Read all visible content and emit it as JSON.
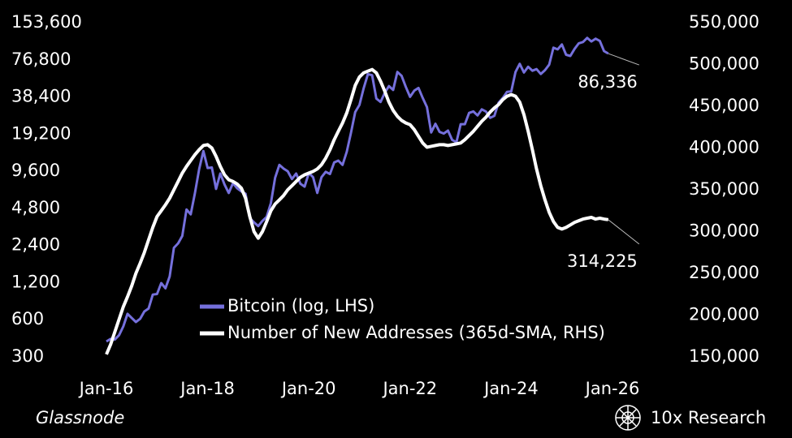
{
  "chart_data": {
    "type": "line",
    "log_y": true,
    "x": [
      "2016-01",
      "2016-02",
      "2016-03",
      "2016-04",
      "2016-05",
      "2016-06",
      "2016-07",
      "2016-08",
      "2016-09",
      "2016-10",
      "2016-11",
      "2016-12",
      "2017-01",
      "2017-02",
      "2017-03",
      "2017-04",
      "2017-05",
      "2017-06",
      "2017-07",
      "2017-08",
      "2017-09",
      "2017-10",
      "2017-11",
      "2017-12",
      "2018-01",
      "2018-02",
      "2018-03",
      "2018-04",
      "2018-05",
      "2018-06",
      "2018-07",
      "2018-08",
      "2018-09",
      "2018-10",
      "2018-11",
      "2018-12",
      "2019-01",
      "2019-02",
      "2019-03",
      "2019-04",
      "2019-05",
      "2019-06",
      "2019-07",
      "2019-08",
      "2019-09",
      "2019-10",
      "2019-11",
      "2019-12",
      "2020-01",
      "2020-02",
      "2020-03",
      "2020-04",
      "2020-05",
      "2020-06",
      "2020-07",
      "2020-08",
      "2020-09",
      "2020-10",
      "2020-11",
      "2020-12",
      "2021-01",
      "2021-02",
      "2021-03",
      "2021-04",
      "2021-05",
      "2021-06",
      "2021-07",
      "2021-08",
      "2021-09",
      "2021-10",
      "2021-11",
      "2021-12",
      "2022-01",
      "2022-02",
      "2022-03",
      "2022-04",
      "2022-05",
      "2022-06",
      "2022-07",
      "2022-08",
      "2022-09",
      "2022-10",
      "2022-11",
      "2022-12",
      "2023-01",
      "2023-02",
      "2023-03",
      "2023-04",
      "2023-05",
      "2023-06",
      "2023-07",
      "2023-08",
      "2023-09",
      "2023-10",
      "2023-11",
      "2023-12",
      "2024-01",
      "2024-02",
      "2024-03",
      "2024-04",
      "2024-05",
      "2024-06",
      "2024-07",
      "2024-08",
      "2024-09",
      "2024-10",
      "2024-11",
      "2024-12",
      "2025-01",
      "2025-02",
      "2025-03",
      "2025-04",
      "2025-05",
      "2025-06",
      "2025-07",
      "2025-08",
      "2025-09",
      "2025-10",
      "2025-11",
      "2025-12"
    ],
    "xlim": [
      "2016-01",
      "2026-01"
    ],
    "xticks": [
      {
        "value": "2016-01",
        "label": "Jan-16"
      },
      {
        "value": "2018-01",
        "label": "Jan-18"
      },
      {
        "value": "2020-01",
        "label": "Jan-20"
      },
      {
        "value": "2022-01",
        "label": "Jan-22"
      },
      {
        "value": "2024-01",
        "label": "Jan-24"
      },
      {
        "value": "2026-01",
        "label": "Jan-26"
      }
    ],
    "ylim": [
      300,
      153600
    ],
    "yticks": [
      300,
      600,
      {
        "value": 1200,
        "label": "1,200"
      },
      {
        "value": 2400,
        "label": "2,400"
      },
      {
        "value": 4800,
        "label": "4,800"
      },
      {
        "value": 9600,
        "label": "9,600"
      },
      {
        "value": 19200,
        "label": "19,200"
      },
      {
        "value": 38400,
        "label": "38,400"
      },
      {
        "value": 76800,
        "label": "76,800"
      },
      {
        "value": 153600,
        "label": "153,600"
      }
    ],
    "y2lim": [
      150000,
      550000
    ],
    "y2ticks": [
      {
        "value": 150000,
        "label": "150,000"
      },
      {
        "value": 200000,
        "label": "200,000"
      },
      {
        "value": 250000,
        "label": "250,000"
      },
      {
        "value": 300000,
        "label": "300,000"
      },
      {
        "value": 350000,
        "label": "350,000"
      },
      {
        "value": 400000,
        "label": "400,000"
      },
      {
        "value": 450000,
        "label": "450,000"
      },
      {
        "value": 500000,
        "label": "500,000"
      },
      {
        "value": 550000,
        "label": "550,000"
      }
    ],
    "series": [
      {
        "name": "Bitcoin (log, LHS)",
        "color": "#7570dc",
        "end_label": "86,336",
        "values": [
          400,
          420,
          415,
          450,
          530,
          670,
          620,
          575,
          610,
          700,
          740,
          960,
          970,
          1190,
          1080,
          1350,
          2300,
          2500,
          2870,
          4700,
          4300,
          6400,
          10000,
          14000,
          10200,
          10300,
          6900,
          9200,
          7500,
          6400,
          7700,
          7000,
          6600,
          6300,
          4000,
          3700,
          3450,
          3800,
          4100,
          5300,
          8500,
          10800,
          10100,
          9600,
          8300,
          9200,
          7600,
          7200,
          9300,
          8600,
          6400,
          8600,
          9500,
          9100,
          11300,
          11700,
          10800,
          13800,
          19700,
          29000,
          33100,
          45200,
          58800,
          57700,
          37300,
          35000,
          41500,
          47100,
          43800,
          61300,
          57000,
          46300,
          38500,
          43200,
          45500,
          37700,
          31800,
          19800,
          23300,
          20000,
          19400,
          20500,
          17200,
          16500,
          23100,
          23100,
          28500,
          29300,
          27200,
          30500,
          29200,
          26000,
          27000,
          34500,
          37700,
          42300,
          42600,
          61200,
          71300,
          60600,
          67500,
          62700,
          64600,
          59000,
          63300,
          70200,
          96400,
          93400,
          102400,
          84400,
          82500,
          94200,
          104600,
          107100,
          115800,
          108200,
          114000,
          109500,
          90400,
          86336
        ]
      },
      {
        "name": "Number of New Addresses (365d-SMA, RHS)",
        "color": "#ffffff",
        "axis": "y2",
        "end_label": "314,225",
        "values": [
          153000,
          165000,
          180000,
          195000,
          210000,
          222000,
          235000,
          250000,
          262000,
          275000,
          290000,
          305000,
          318000,
          325000,
          332000,
          340000,
          350000,
          360000,
          370000,
          378000,
          385000,
          392000,
          398000,
          403000,
          404000,
          400000,
          390000,
          378000,
          368000,
          362000,
          360000,
          357000,
          352000,
          340000,
          318000,
          300000,
          292000,
          300000,
          312000,
          325000,
          333000,
          338000,
          343000,
          350000,
          355000,
          360000,
          365000,
          368000,
          370000,
          372000,
          375000,
          380000,
          388000,
          398000,
          410000,
          420000,
          430000,
          442000,
          458000,
          475000,
          485000,
          490000,
          492000,
          494000,
          490000,
          480000,
          468000,
          455000,
          445000,
          438000,
          433000,
          430000,
          428000,
          422000,
          414000,
          406000,
          401000,
          402000,
          403000,
          404000,
          404000,
          403000,
          404000,
          405000,
          406000,
          410000,
          415000,
          420000,
          426000,
          432000,
          437000,
          443000,
          448000,
          452000,
          458000,
          462000,
          464000,
          462000,
          455000,
          440000,
          420000,
          398000,
          375000,
          355000,
          338000,
          323000,
          312000,
          305000,
          303000,
          305000,
          308000,
          311000,
          313000,
          315000,
          316000,
          317000,
          315000,
          316000,
          315000,
          314225
        ]
      }
    ]
  },
  "source": "Glassnode",
  "brand": "10x Research"
}
